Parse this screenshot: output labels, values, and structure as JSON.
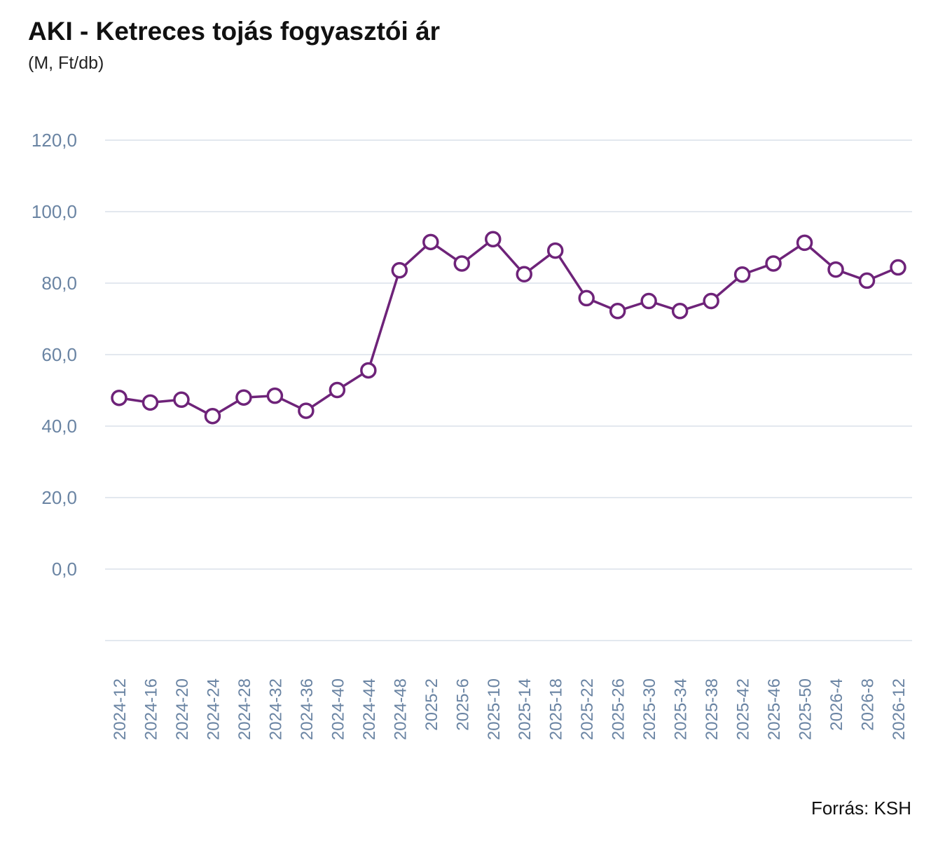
{
  "title": "AKI - Ketreces tojás fogyasztói ár",
  "subtitle": "(M, Ft/db)",
  "source": "Forrás: KSH",
  "colors": {
    "series": "#6e2379",
    "grid": "#e3e8ef",
    "tick_text": "#6a84a3"
  },
  "chart_data": {
    "type": "line",
    "ylim": [
      -20,
      120
    ],
    "yticks": [
      0,
      20,
      40,
      60,
      80,
      100,
      120
    ],
    "ytick_labels": [
      "0,0",
      "20,0",
      "40,0",
      "60,0",
      "80,0",
      "100,0",
      "120,0"
    ],
    "grid": true,
    "categories": [
      "2024-12",
      "2024-16",
      "2024-20",
      "2024-24",
      "2024-28",
      "2024-32",
      "2024-36",
      "2024-40",
      "2024-44",
      "2024-48",
      "2025-2",
      "2025-6",
      "2025-10",
      "2025-14",
      "2025-18",
      "2025-22",
      "2025-26",
      "2025-30",
      "2025-34",
      "2025-38",
      "2025-42",
      "2025-46",
      "2025-50",
      "2026-4",
      "2026-8",
      "2026-12"
    ],
    "series": [
      {
        "values": [
          47.9,
          46.6,
          47.4,
          42.8,
          48.0,
          48.5,
          44.3,
          50.1,
          55.6,
          83.6,
          91.5,
          85.5,
          92.3,
          82.5,
          89.1,
          75.8,
          72.2,
          75.0,
          72.2,
          75.0,
          82.4,
          85.5,
          91.3,
          83.8,
          80.7,
          84.4
        ]
      }
    ]
  }
}
